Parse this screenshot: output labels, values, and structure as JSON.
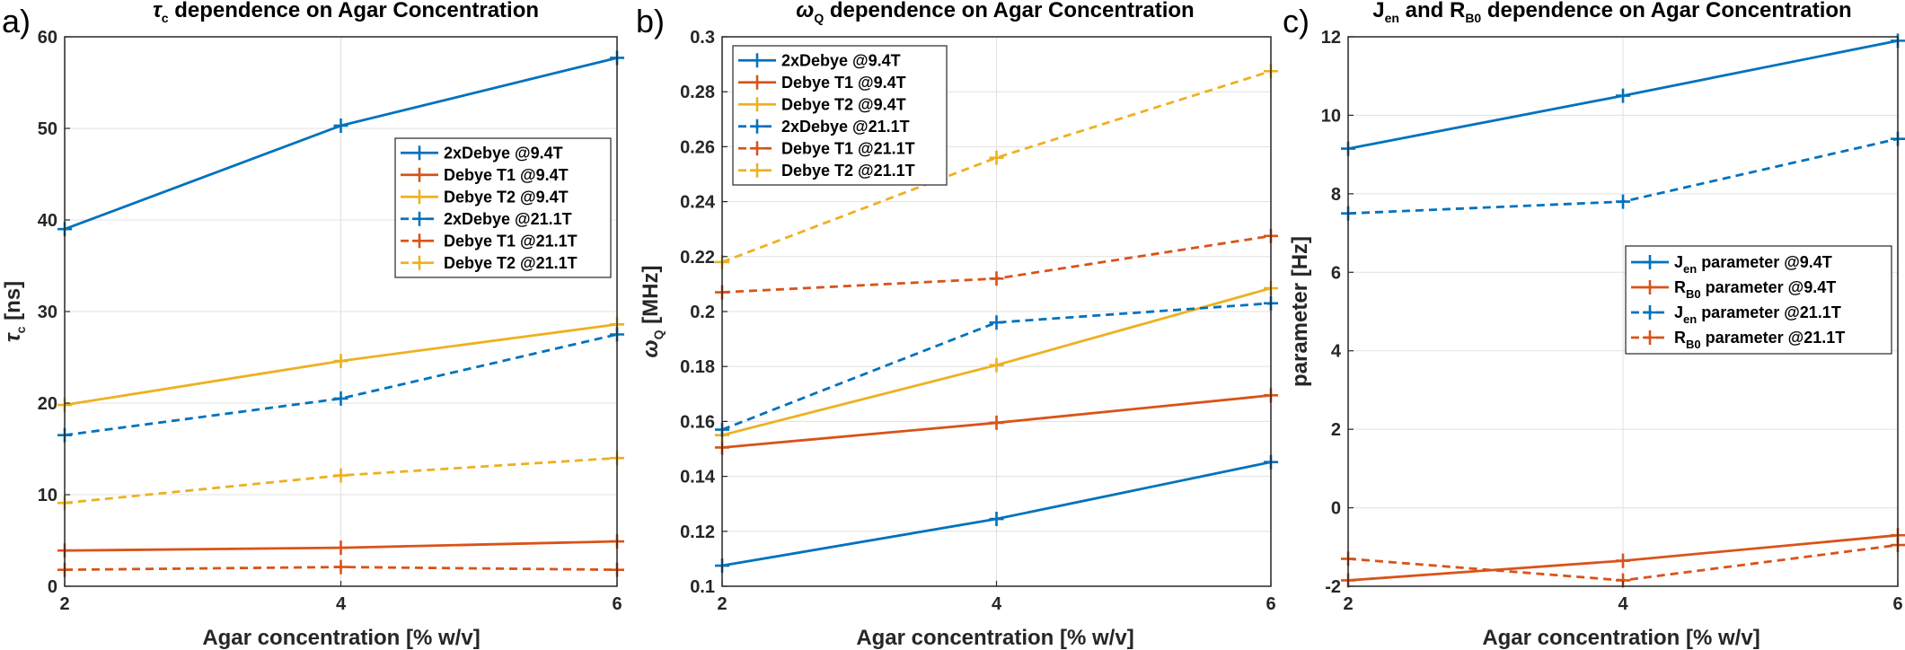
{
  "colors": {
    "blue": "#0072bd",
    "orange": "#d95319",
    "yellow": "#edb120"
  },
  "chart_data": [
    {
      "type": "line",
      "panel_label": "a)",
      "title": "τc dependence on Agar Concentration",
      "title_parts": {
        "symbol": "τ",
        "sub": "c",
        "rest": " dependence on Agar Concentration"
      },
      "xlabel": "Agar concentration [% w/v]",
      "ylabel": "τc [ns]",
      "ylabel_parts": {
        "symbol": "τ",
        "sub": "c",
        "rest": " [ns]"
      },
      "x": [
        2,
        4,
        6
      ],
      "xlim": [
        2,
        6
      ],
      "ylim": [
        0,
        60
      ],
      "xticks": [
        "2",
        "4",
        "6"
      ],
      "yticks": [
        "0",
        "10",
        "20",
        "30",
        "40",
        "50",
        "60"
      ],
      "grid": true,
      "legend_position": "upper-right",
      "series": [
        {
          "name": "2xDebye @9.4T",
          "label_parts": [
            "2xDebye @9.4T"
          ],
          "color": "blue",
          "dash": false,
          "values": [
            39,
            50.3,
            57.7
          ]
        },
        {
          "name": "Debye T1 @9.4T",
          "label_parts": [
            "Debye T1 @9.4T"
          ],
          "color": "orange",
          "dash": false,
          "values": [
            3.9,
            4.2,
            4.9
          ]
        },
        {
          "name": "Debye T2 @9.4T",
          "label_parts": [
            "Debye T2 @9.4T"
          ],
          "color": "yellow",
          "dash": false,
          "values": [
            19.8,
            24.6,
            28.6
          ]
        },
        {
          "name": "2xDebye @21.1T",
          "label_parts": [
            "2xDebye @21.1T"
          ],
          "color": "blue",
          "dash": true,
          "values": [
            16.5,
            20.5,
            27.5
          ]
        },
        {
          "name": "Debye T1 @21.1T",
          "label_parts": [
            "Debye T1 @21.1T"
          ],
          "color": "orange",
          "dash": true,
          "values": [
            1.8,
            2.1,
            1.8
          ]
        },
        {
          "name": "Debye T2 @21.1T",
          "label_parts": [
            "Debye T2 @21.1T"
          ],
          "color": "yellow",
          "dash": true,
          "values": [
            9.1,
            12.1,
            14
          ]
        }
      ]
    },
    {
      "type": "line",
      "panel_label": "b)",
      "title": "ωQ dependence on Agar Concentration",
      "title_parts": {
        "symbol": "ω",
        "sub": "Q",
        "rest": " dependence on Agar Concentration"
      },
      "xlabel": "Agar concentration [% w/v]",
      "ylabel": "ωQ [MHz]",
      "ylabel_parts": {
        "symbol": "ω",
        "sub": "Q",
        "rest": " [MHz]"
      },
      "x": [
        2,
        4,
        6
      ],
      "xlim": [
        2,
        6
      ],
      "ylim": [
        0.1,
        0.3
      ],
      "xticks": [
        "2",
        "4",
        "6"
      ],
      "yticks": [
        "0.1",
        "0.12",
        "0.14",
        "0.16",
        "0.18",
        "0.2",
        "0.22",
        "0.24",
        "0.26",
        "0.28",
        "0.3"
      ],
      "grid": true,
      "legend_position": "upper-left",
      "series": [
        {
          "name": "2xDebye @9.4T",
          "label_parts": [
            "2xDebye @9.4T"
          ],
          "color": "blue",
          "dash": false,
          "values": [
            0.1075,
            0.1245,
            0.1452
          ]
        },
        {
          "name": "Debye T1 @9.4T",
          "label_parts": [
            "Debye T1 @9.4T"
          ],
          "color": "orange",
          "dash": false,
          "values": [
            0.1505,
            0.1595,
            0.1695
          ]
        },
        {
          "name": "Debye T2 @9.4T",
          "label_parts": [
            "Debye T2 @9.4T"
          ],
          "color": "yellow",
          "dash": false,
          "values": [
            0.155,
            0.1805,
            0.2085
          ]
        },
        {
          "name": "2xDebye @21.1T",
          "label_parts": [
            "2xDebye @21.1T"
          ],
          "color": "blue",
          "dash": true,
          "values": [
            0.157,
            0.196,
            0.203
          ]
        },
        {
          "name": "Debye T1 @21.1T",
          "label_parts": [
            "Debye T1 @21.1T"
          ],
          "color": "orange",
          "dash": true,
          "values": [
            0.207,
            0.212,
            0.2275
          ]
        },
        {
          "name": "Debye T2 @21.1T",
          "label_parts": [
            "Debye T2 @21.1T"
          ],
          "color": "yellow",
          "dash": true,
          "values": [
            0.218,
            0.256,
            0.2875
          ]
        }
      ]
    },
    {
      "type": "line",
      "panel_label": "c)",
      "title": "Jen and RB0 dependence on Agar Concentration",
      "title_parts": {
        "a": "J",
        "a_sub": "en",
        "mid": " and R",
        "b_sub": "B0",
        "rest": " dependence on Agar Concentration"
      },
      "xlabel": "Agar concentration [% w/v]",
      "ylabel": "parameter [Hz]",
      "x": [
        2,
        4,
        6
      ],
      "xlim": [
        2,
        6
      ],
      "ylim": [
        -2,
        12
      ],
      "xticks": [
        "2",
        "4",
        "6"
      ],
      "yticks": [
        "-2",
        "0",
        "2",
        "4",
        "6",
        "8",
        "10",
        "12"
      ],
      "grid": true,
      "legend_position": "middle-right",
      "series": [
        {
          "name": "Jen parameter @9.4T",
          "label_parts": [
            "J",
            "en",
            " parameter @9.4T"
          ],
          "color": "blue",
          "dash": false,
          "values": [
            9.15,
            10.5,
            11.9
          ]
        },
        {
          "name": "RB0 parameter @9.4T",
          "label_parts": [
            "R",
            "B0",
            " parameter @9.4T"
          ],
          "color": "orange",
          "dash": false,
          "values": [
            -1.85,
            -1.35,
            -0.7
          ]
        },
        {
          "name": "Jen parameter @21.1T",
          "label_parts": [
            "J",
            "en",
            " parameter @21.1T"
          ],
          "color": "blue",
          "dash": true,
          "values": [
            7.5,
            7.8,
            9.4
          ]
        },
        {
          "name": "RB0 parameter @21.1T",
          "label_parts": [
            "R",
            "B0",
            " parameter @21.1T"
          ],
          "color": "orange",
          "dash": true,
          "values": [
            -1.3,
            -1.85,
            -0.95
          ]
        }
      ]
    }
  ]
}
